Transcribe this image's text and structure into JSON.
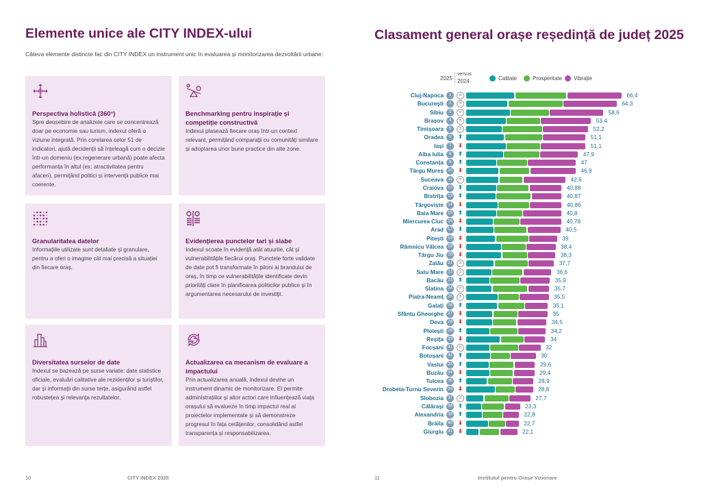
{
  "left": {
    "title": "Elemente unice ale CITY INDEX-ului",
    "intro": "Câteva elemente distincte fac din CITY INDEX un instrument unic în evaluarea și monitorizarea dezvoltării urbane:",
    "cards": [
      {
        "icon": "arrows-expand-icon",
        "title": "Perspectiva holistică (360°)",
        "text": "Spre deosebire de analizele care se concentrează doar pe economie sau turism, indexul oferă o viziune integrată. Prin corelarea celor 51 de indicatori, ajută decidenții să înțeleagă cum o decizie într-un domeniu (ex:regenerare urbană) poate afecta performanța în altul (ex: atractivitatea pentru afaceri), permițând politici și intervenții publice mai coerente."
      },
      {
        "icon": "seesaw-icon",
        "title": "Benchmarking pentru inspirație și competiție constructivă",
        "text": "Indexul plasează fiecare oraș într-un context relevant, permițând comparații cu comunități similare și adoptarea unor bune practice din alte zone."
      },
      {
        "icon": "dot-grid-icon",
        "title": "Granularitatea datelor",
        "text": "Informațiile utilizate sunt detaliate și granulare, pentru a oferi o imagine cât mai precisă a situației din fiecare oraș."
      },
      {
        "icon": "compare-columns-icon",
        "title": "Evidențierea punctelor tari și slabe",
        "text": "Indexul scoate în evidență atât atuurile, cât și vulnerabilitățile fiecărui oraș. Punctele forte validate de date pot fi transformate în piloni ai brandului de oraș, în timp ce vulnerabilitățile identificate devin priorități clare în planificarea politicilor publice și în argumentarea necesarului de investiții."
      },
      {
        "icon": "buildings-icon",
        "title": "Diversitatea surselor de date",
        "text": "Indexul se bazează pe surse variate: date statistice oficiale, evaluări calitative ale rezidenților și turiștilor, dar și informații din surse terțe, asigurând astfel robustețea și relevanța rezultatelor."
      },
      {
        "icon": "refresh-cycle-icon",
        "title": "Actualizarea ca mecanism de evaluare a impactului",
        "text": "Prin actualizarea anuală, indexul devine un instrument dinamic de monitorizare. El permite administrațiilor și altor actori care influențează viața orașului să evalueze în timp impactul real al proiectelor implementate și să demonstreze progresul în fața cetățenilor, consolidând astfel transparența și responsabilizarea."
      }
    ],
    "page_number": "10",
    "footer": "CITY INDEX 2025"
  },
  "right": {
    "title": "Clasament general orașe reședință de județ 2025",
    "page_number": "11",
    "footer": "Institutul pentru Orașe Vizionare"
  },
  "chart_data": {
    "type": "bar",
    "stacked": true,
    "orientation": "horizontal",
    "title": "Clasament general orașe reședință de județ 2025",
    "col_2025": "2025",
    "col_versus": "versus",
    "col_2024": "2024",
    "series": [
      {
        "name": "Calitate",
        "color": "#12a0a3"
      },
      {
        "name": "Prosperitate",
        "color": "#5db847"
      },
      {
        "name": "Vibrație",
        "color": "#b24fa5"
      }
    ],
    "change_symbols": {
      "eq": "=",
      "up": "⬆",
      "down": "⬇"
    },
    "rows": [
      [
        "Cluj-Napoca",
        1,
        "eq",
        [
          20.8,
          22.1,
          23.5
        ],
        "66,4"
      ],
      [
        "București",
        2,
        "eq",
        [
          17.9,
          23.4,
          23.0
        ],
        "64,3"
      ],
      [
        "Sibiu",
        3,
        "eq",
        [
          18.9,
          16.7,
          23.0
        ],
        "58,6"
      ],
      [
        "Brașov",
        4,
        "eq",
        [
          17.2,
          14.6,
          21.6
        ],
        "53,4"
      ],
      [
        "Timișoara",
        5,
        "eq",
        [
          15.5,
          17.2,
          19.5
        ],
        "52,2"
      ],
      [
        "Oradea",
        6,
        "up",
        [
          16.5,
          16.2,
          18.4
        ],
        "51,1"
      ],
      [
        "Iași",
        7,
        "down",
        [
          17.2,
          14.6,
          19.3
        ],
        "51,1"
      ],
      [
        "Alba Iulia",
        8,
        "up",
        [
          16.1,
          15.3,
          16.5
        ],
        "47,9"
      ],
      [
        "Constanța",
        9,
        "up",
        [
          13.2,
          13.0,
          20.8
        ],
        "47"
      ],
      [
        "Târgu Mureș",
        10,
        "down",
        [
          14.1,
          13.2,
          19.6
        ],
        "46,9"
      ],
      [
        "Suceava",
        11,
        "eq",
        [
          14.1,
          10.3,
          18.2
        ],
        "42,6"
      ],
      [
        "Craiova",
        12,
        "up",
        [
          13.2,
          13.7,
          14.0
        ],
        "40,88"
      ],
      [
        "Bistrița",
        13,
        "up",
        [
          12.9,
          15.0,
          13.0
        ],
        "40,87"
      ],
      [
        "Târgoviște",
        14,
        "down",
        [
          13.8,
          13.3,
          13.8
        ],
        "40,86"
      ],
      [
        "Baia Mare",
        15,
        "up",
        [
          13.2,
          11.0,
          16.6
        ],
        "40,8"
      ],
      [
        "Miercurea Ciuc",
        16,
        "down",
        [
          11.7,
          11.3,
          17.8
        ],
        "40,78"
      ],
      [
        "Arad",
        17,
        "up",
        [
          12.0,
          14.1,
          14.4
        ],
        "40,5"
      ],
      [
        "Pitești",
        18,
        "down",
        [
          12.7,
          14.1,
          12.2
        ],
        "39"
      ],
      [
        "Râmnicu Vâlcea",
        19,
        "down",
        [
          15.2,
          10.5,
          12.7
        ],
        "38,4"
      ],
      [
        "Târgu Jiu",
        20,
        "down",
        [
          15.4,
          10.9,
          12.0
        ],
        "38,3"
      ],
      [
        "Zalău",
        21,
        "eq",
        [
          12.1,
          14.4,
          11.2
        ],
        "37,7"
      ],
      [
        "Satu Mare",
        22,
        "eq",
        [
          11.1,
          13.2,
          12.3
        ],
        "36,6"
      ],
      [
        "Bacău",
        23,
        "up",
        [
          10.2,
          12.9,
          12.8
        ],
        "35,9"
      ],
      [
        "Slatina",
        24,
        "eq",
        [
          11.2,
          15.2,
          9.3
        ],
        "35,7"
      ],
      [
        "Piatra-Neamț",
        25,
        "eq",
        [
          13.8,
          8.9,
          12.8
        ],
        "35,5"
      ],
      [
        "Galați",
        26,
        "up",
        [
          13.6,
          11.5,
          10.0
        ],
        "35,1"
      ],
      [
        "Sfântu Gheorghe",
        27,
        "down",
        [
          11.6,
          10.6,
          12.8
        ],
        "35"
      ],
      [
        "Deva",
        28,
        "down",
        [
          11.4,
          10.4,
          12.7
        ],
        "34,5"
      ],
      [
        "Ploiești",
        29,
        "up",
        [
          10.3,
          11.8,
          12.1
        ],
        "34,2"
      ],
      [
        "Reșița",
        30,
        "down",
        [
          14.8,
          10.0,
          9.2
        ],
        "34"
      ],
      [
        "Focșani",
        31,
        "eq",
        [
          10.3,
          12.2,
          9.5
        ],
        "32"
      ],
      [
        "Botoșani",
        32,
        "up",
        [
          10.5,
          8.5,
          11.0
        ],
        "30"
      ],
      [
        "Vaslui",
        33,
        "up",
        [
          10.0,
          10.5,
          9.1
        ],
        "29,6"
      ],
      [
        "Buzău",
        34,
        "down",
        [
          10.3,
          10.0,
          9.1
        ],
        "29,4"
      ],
      [
        "Tulcea",
        35,
        "up",
        [
          9.3,
          10.6,
          9.0
        ],
        "28,9"
      ],
      [
        "Drobeta-Turnu Severin",
        36,
        "down",
        [
          12.6,
          8.4,
          7.8
        ],
        "28,8"
      ],
      [
        "Slobozia",
        37,
        "eq",
        [
          7.8,
          10.6,
          9.3
        ],
        "27,7"
      ],
      [
        "Călărași",
        38,
        "up",
        [
          6.7,
          9.8,
          6.8
        ],
        "23,3"
      ],
      [
        "Alexandria",
        39,
        "up",
        [
          7.0,
          8.8,
          7.0
        ],
        "22,8"
      ],
      [
        "Brăila",
        40,
        "down",
        [
          9.7,
          7.3,
          5.7
        ],
        "22,7"
      ],
      [
        "Giurgiu",
        41,
        "down",
        [
          5.8,
          8.7,
          7.6
        ],
        "22,1"
      ]
    ]
  }
}
